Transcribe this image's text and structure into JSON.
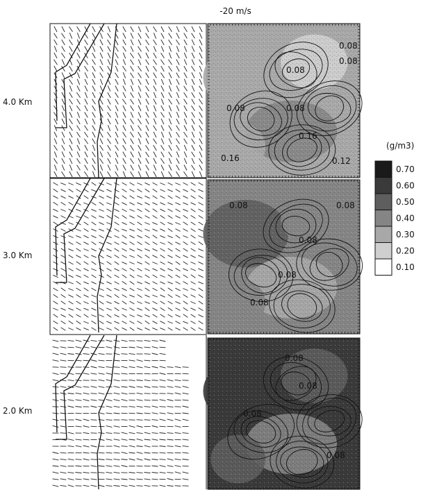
{
  "figure": {
    "vector_scale_label": "-20 m/s",
    "levels": [
      {
        "label": "4.0 Km",
        "shading": [
          0.3,
          0.2,
          0.4,
          0.3
        ],
        "contour_labels": [
          "0.08",
          "0.08",
          "0.08",
          "0.08",
          "0.16",
          "0.12",
          "0.16",
          "0.08"
        ]
      },
      {
        "label": "3.0 Km",
        "shading": [
          0.5,
          0.4,
          0.3,
          0.4
        ],
        "contour_labels": [
          "0.08",
          "0.08",
          "0.08",
          "0.08",
          "0.08"
        ]
      },
      {
        "label": "2.0 Km",
        "shading": [
          0.6,
          0.5,
          0.4,
          0.5
        ],
        "contour_labels": [
          "0.08",
          "0.08",
          "0.08",
          "0.08"
        ]
      }
    ]
  },
  "colorbar": {
    "unit": "(g/m3)",
    "entries": [
      {
        "value": "0.70",
        "color": "#1a1a1a"
      },
      {
        "value": "0.60",
        "color": "#3a3a3a"
      },
      {
        "value": "0.50",
        "color": "#5e5e5e"
      },
      {
        "value": "0.40",
        "color": "#858585"
      },
      {
        "value": "0.30",
        "color": "#a8a8a8"
      },
      {
        "value": "0.20",
        "color": "#cfcfcf"
      },
      {
        "value": "0.10",
        "color": "#ffffff"
      }
    ]
  }
}
